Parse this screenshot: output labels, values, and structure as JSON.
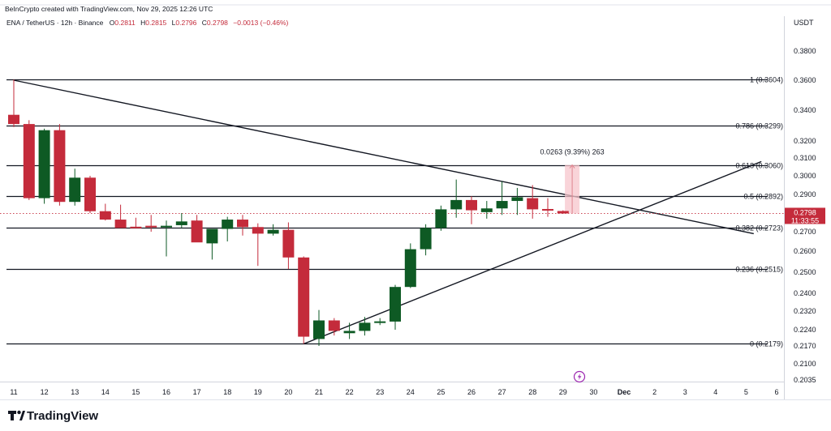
{
  "attribution": "BeInCrypto created with TradingView.com, Nov 29, 2025 12:26 UTC",
  "header": {
    "symbol": "ENA / TetherUS · 12h · Binance",
    "open_label": "O",
    "open": "0.2811",
    "high_label": "H",
    "high": "0.2815",
    "low_label": "L",
    "low": "0.2796",
    "close_label": "C",
    "close": "0.2798",
    "change": "−0.0013 (−0.46%)"
  },
  "price_axis": {
    "currency": "USDT",
    "current_price": "0.2798",
    "countdown": "11:33:55"
  },
  "measure_label": "0.0263 (9.39%) 263",
  "brand": "TradingView",
  "colors": {
    "up": "#0e5a24",
    "down": "#c42b3b",
    "line": "#131722",
    "measure_fill": "#f7c6cc",
    "measure_line": "#e0848f"
  },
  "chart_data": {
    "type": "candlestick",
    "interval": "12h",
    "ylim": [
      0.2035,
      0.385
    ],
    "y_ticks": [
      "0.3800",
      "0.3600",
      "0.3400",
      "0.3200",
      "0.3100",
      "0.3000",
      "0.2900",
      "0.2800",
      "0.2700",
      "0.2600",
      "0.2500",
      "0.2400",
      "0.2320",
      "0.2240",
      "0.2170",
      "0.2100",
      "0.2035"
    ],
    "x_ticks": [
      "11",
      "12",
      "13",
      "14",
      "15",
      "16",
      "17",
      "18",
      "19",
      "20",
      "21",
      "22",
      "23",
      "24",
      "25",
      "26",
      "27",
      "28",
      "29",
      "30",
      "Dec",
      "2",
      "3",
      "4",
      "5",
      "6"
    ],
    "candles": [
      {
        "x": 0,
        "o": 0.337,
        "h": 0.3604,
        "l": 0.329,
        "c": 0.331
      },
      {
        "x": 1,
        "o": 0.331,
        "h": 0.3335,
        "l": 0.287,
        "c": 0.288
      },
      {
        "x": 2,
        "o": 0.288,
        "h": 0.328,
        "l": 0.285,
        "c": 0.327
      },
      {
        "x": 3,
        "o": 0.327,
        "h": 0.331,
        "l": 0.284,
        "c": 0.286
      },
      {
        "x": 4,
        "o": 0.286,
        "h": 0.304,
        "l": 0.284,
        "c": 0.299
      },
      {
        "x": 5,
        "o": 0.299,
        "h": 0.3,
        "l": 0.28,
        "c": 0.281
      },
      {
        "x": 6,
        "o": 0.281,
        "h": 0.285,
        "l": 0.276,
        "c": 0.2765
      },
      {
        "x": 7,
        "o": 0.2765,
        "h": 0.2845,
        "l": 0.2725,
        "c": 0.272
      },
      {
        "x": 8,
        "o": 0.2725,
        "h": 0.2775,
        "l": 0.272,
        "c": 0.272
      },
      {
        "x": 9,
        "o": 0.273,
        "h": 0.279,
        "l": 0.27,
        "c": 0.2725
      },
      {
        "x": 10,
        "o": 0.2725,
        "h": 0.276,
        "l": 0.2575,
        "c": 0.273
      },
      {
        "x": 11,
        "o": 0.2735,
        "h": 0.28,
        "l": 0.272,
        "c": 0.2755
      },
      {
        "x": 12,
        "o": 0.276,
        "h": 0.279,
        "l": 0.2655,
        "c": 0.2645
      },
      {
        "x": 13,
        "o": 0.264,
        "h": 0.271,
        "l": 0.256,
        "c": 0.2715
      },
      {
        "x": 14,
        "o": 0.2715,
        "h": 0.278,
        "l": 0.265,
        "c": 0.2765
      },
      {
        "x": 15,
        "o": 0.2765,
        "h": 0.279,
        "l": 0.268,
        "c": 0.2725
      },
      {
        "x": 16,
        "o": 0.2725,
        "h": 0.2745,
        "l": 0.253,
        "c": 0.269
      },
      {
        "x": 17,
        "o": 0.269,
        "h": 0.274,
        "l": 0.268,
        "c": 0.271
      },
      {
        "x": 18,
        "o": 0.271,
        "h": 0.275,
        "l": 0.2515,
        "c": 0.257
      },
      {
        "x": 19,
        "o": 0.257,
        "h": 0.2575,
        "l": 0.2179,
        "c": 0.221
      },
      {
        "x": 20,
        "o": 0.22,
        "h": 0.2325,
        "l": 0.217,
        "c": 0.228
      },
      {
        "x": 21,
        "o": 0.228,
        "h": 0.229,
        "l": 0.2215,
        "c": 0.2235
      },
      {
        "x": 22,
        "o": 0.2225,
        "h": 0.227,
        "l": 0.22,
        "c": 0.2235
      },
      {
        "x": 23,
        "o": 0.2235,
        "h": 0.2295,
        "l": 0.2215,
        "c": 0.227
      },
      {
        "x": 24,
        "o": 0.227,
        "h": 0.229,
        "l": 0.226,
        "c": 0.2275
      },
      {
        "x": 25,
        "o": 0.2275,
        "h": 0.244,
        "l": 0.224,
        "c": 0.243
      },
      {
        "x": 26,
        "o": 0.243,
        "h": 0.264,
        "l": 0.2425,
        "c": 0.261
      },
      {
        "x": 27,
        "o": 0.261,
        "h": 0.274,
        "l": 0.258,
        "c": 0.272
      },
      {
        "x": 28,
        "o": 0.272,
        "h": 0.284,
        "l": 0.2705,
        "c": 0.282
      },
      {
        "x": 29,
        "o": 0.282,
        "h": 0.298,
        "l": 0.2775,
        "c": 0.287
      },
      {
        "x": 30,
        "o": 0.287,
        "h": 0.289,
        "l": 0.274,
        "c": 0.2815
      },
      {
        "x": 31,
        "o": 0.2805,
        "h": 0.2865,
        "l": 0.277,
        "c": 0.2825
      },
      {
        "x": 32,
        "o": 0.2825,
        "h": 0.297,
        "l": 0.279,
        "c": 0.2865
      },
      {
        "x": 33,
        "o": 0.2865,
        "h": 0.2935,
        "l": 0.279,
        "c": 0.2885
      },
      {
        "x": 34,
        "o": 0.288,
        "h": 0.295,
        "l": 0.277,
        "c": 0.282
      },
      {
        "x": 35,
        "o": 0.282,
        "h": 0.288,
        "l": 0.278,
        "c": 0.2815
      },
      {
        "x": 36,
        "o": 0.2811,
        "h": 0.2815,
        "l": 0.2796,
        "c": 0.2798
      }
    ],
    "fib_levels": [
      {
        "label": "1 (0.3604)",
        "value": 0.3604
      },
      {
        "label": "0.786 (0.3299)",
        "value": 0.3299
      },
      {
        "label": "0.618 (0.3060)",
        "value": 0.306
      },
      {
        "label": "0.5 (0.2892)",
        "value": 0.2892
      },
      {
        "label": "0.382 (0.2723)",
        "value": 0.2723
      },
      {
        "label": "0.236 (0.2515)",
        "value": 0.2515
      },
      {
        "label": "0 (0.2179)",
        "value": 0.2179
      }
    ],
    "trendlines": [
      {
        "from": {
          "x": 0,
          "y": 0.36
        },
        "to": {
          "x": 48.5,
          "y": 0.269
        }
      },
      {
        "from": {
          "x": 19,
          "y": 0.2179
        },
        "to": {
          "x": 49,
          "y": 0.308
        }
      }
    ],
    "measure": {
      "x": 36.6,
      "from": 0.2798,
      "to": 0.3061
    }
  }
}
